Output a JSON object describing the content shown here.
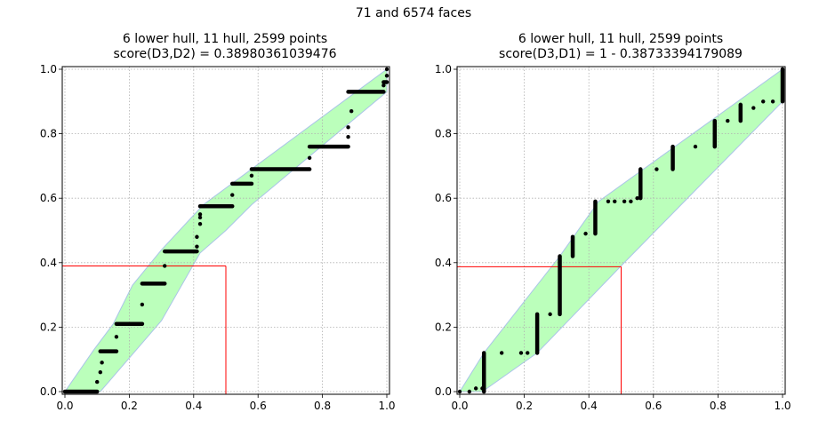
{
  "figure": {
    "suptitle": "71 and 6574 faces"
  },
  "chart_data": [
    {
      "type": "scatter",
      "title": "6 lower hull, 11 hull, 2599 points",
      "subtitle": "score(D3,D2) = 0.38980361039476",
      "xlim": [
        0,
        1
      ],
      "ylim": [
        0,
        1
      ],
      "xticks": [
        "0.0",
        "0.2",
        "0.4",
        "0.6",
        "0.8",
        "1.0"
      ],
      "yticks": [
        "0.0",
        "0.2",
        "0.4",
        "0.6",
        "0.8",
        "1.0"
      ],
      "grid": true,
      "hull_color": "#bbffbb",
      "hull_edge_color": "#aac4e8",
      "marker_color": "#000000",
      "reference_line_color": "#ff0000",
      "hull": [
        [
          0,
          0
        ],
        [
          0.11,
          0
        ],
        [
          0.3,
          0.22
        ],
        [
          0.42,
          0.43
        ],
        [
          0.5,
          0.5
        ],
        [
          0.58,
          0.58
        ],
        [
          0.76,
          0.73
        ],
        [
          1,
          0.93
        ],
        [
          1,
          1
        ],
        [
          0.43,
          0.58
        ],
        [
          0.3,
          0.44
        ],
        [
          0.21,
          0.33
        ],
        [
          0.15,
          0.21
        ],
        [
          0.09,
          0.13
        ],
        [
          0,
          0
        ]
      ],
      "reference_point": [
        0.5,
        0.38980361039476
      ],
      "segments": [
        {
          "x": [
            0.0,
            0.1
          ],
          "y": 0.0
        },
        {
          "x": [
            0.11,
            0.16
          ],
          "y": 0.125
        },
        {
          "x": [
            0.16,
            0.24
          ],
          "y": 0.21
        },
        {
          "x": [
            0.24,
            0.31
          ],
          "y": 0.335
        },
        {
          "x": [
            0.31,
            0.41
          ],
          "y": 0.435
        },
        {
          "x": [
            0.42,
            0.52
          ],
          "y": 0.575
        },
        {
          "x": [
            0.52,
            0.58
          ],
          "y": 0.645
        },
        {
          "x": [
            0.58,
            0.76
          ],
          "y": 0.69
        },
        {
          "x": [
            0.76,
            0.88
          ],
          "y": 0.76
        },
        {
          "x": [
            0.88,
            0.99
          ],
          "y": 0.93
        },
        {
          "x": [
            0.99,
            1.0
          ],
          "y": 0.96
        }
      ],
      "points": [
        [
          0.1,
          0.03
        ],
        [
          0.11,
          0.06
        ],
        [
          0.115,
          0.09
        ],
        [
          0.16,
          0.17
        ],
        [
          0.24,
          0.27
        ],
        [
          0.31,
          0.39
        ],
        [
          0.41,
          0.45
        ],
        [
          0.41,
          0.48
        ],
        [
          0.42,
          0.52
        ],
        [
          0.42,
          0.54
        ],
        [
          0.42,
          0.55
        ],
        [
          0.52,
          0.61
        ],
        [
          0.58,
          0.67
        ],
        [
          0.76,
          0.725
        ],
        [
          0.88,
          0.79
        ],
        [
          0.88,
          0.82
        ],
        [
          0.89,
          0.87
        ],
        [
          0.99,
          0.95
        ],
        [
          1.0,
          0.98
        ],
        [
          1.0,
          1.0
        ]
      ]
    },
    {
      "type": "scatter",
      "title": "6 lower hull, 11 hull, 2599 points",
      "subtitle": "score(D3,D1) = 1 - 0.38733394179089",
      "xlim": [
        0,
        1
      ],
      "ylim": [
        0,
        1
      ],
      "xticks": [
        "0.0",
        "0.2",
        "0.4",
        "0.6",
        "0.8",
        "1.0"
      ],
      "yticks": [
        "0.0",
        "0.2",
        "0.4",
        "0.6",
        "0.8",
        "1.0"
      ],
      "grid": true,
      "hull_color": "#bbffbb",
      "hull_edge_color": "#aac4e8",
      "marker_color": "#000000",
      "reference_line_color": "#ff0000",
      "hull": [
        [
          0,
          0
        ],
        [
          0.07,
          0
        ],
        [
          0.24,
          0.12
        ],
        [
          0.5,
          0.39
        ],
        [
          1,
          0.9
        ],
        [
          1,
          1
        ],
        [
          0.43,
          0.59
        ],
        [
          0.31,
          0.42
        ],
        [
          0.075,
          0.12
        ],
        [
          0,
          0
        ]
      ],
      "reference_point": [
        0.5,
        0.38733394179089
      ],
      "bars": [
        {
          "x": 0.075,
          "y": [
            0.0,
            0.12
          ]
        },
        {
          "x": 0.24,
          "y": [
            0.12,
            0.24
          ]
        },
        {
          "x": 0.31,
          "y": [
            0.24,
            0.42
          ]
        },
        {
          "x": 0.35,
          "y": [
            0.42,
            0.48
          ]
        },
        {
          "x": 0.42,
          "y": [
            0.49,
            0.59
          ]
        },
        {
          "x": 0.56,
          "y": [
            0.6,
            0.69
          ]
        },
        {
          "x": 0.66,
          "y": [
            0.69,
            0.76
          ]
        },
        {
          "x": 0.79,
          "y": [
            0.76,
            0.84
          ]
        },
        {
          "x": 0.87,
          "y": [
            0.84,
            0.89
          ]
        },
        {
          "x": 1.0,
          "y": [
            0.9,
            1.0
          ]
        }
      ],
      "points": [
        [
          0.0,
          0.0
        ],
        [
          0.03,
          0.0
        ],
        [
          0.05,
          0.01
        ],
        [
          0.07,
          0.01
        ],
        [
          0.13,
          0.12
        ],
        [
          0.19,
          0.12
        ],
        [
          0.21,
          0.12
        ],
        [
          0.28,
          0.24
        ],
        [
          0.39,
          0.49
        ],
        [
          0.46,
          0.59
        ],
        [
          0.48,
          0.59
        ],
        [
          0.51,
          0.59
        ],
        [
          0.53,
          0.59
        ],
        [
          0.55,
          0.6
        ],
        [
          0.61,
          0.69
        ],
        [
          0.73,
          0.76
        ],
        [
          0.83,
          0.84
        ],
        [
          0.91,
          0.88
        ],
        [
          0.94,
          0.9
        ],
        [
          0.97,
          0.9
        ]
      ]
    }
  ]
}
